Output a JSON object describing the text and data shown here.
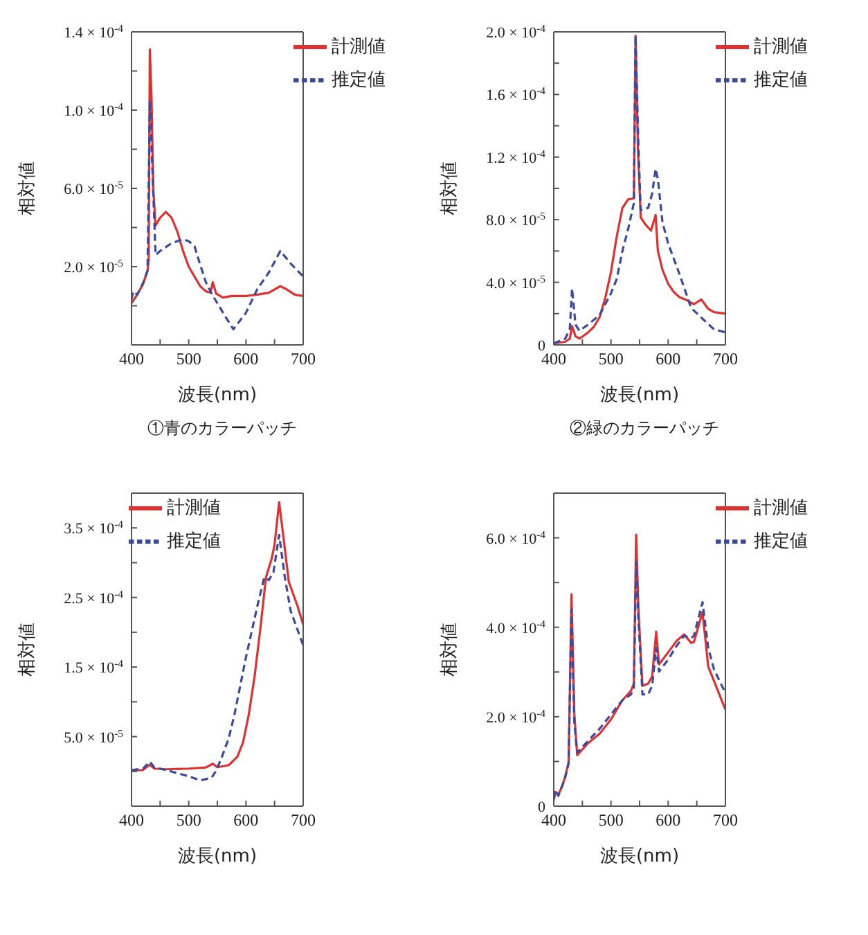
{
  "chart_data": [
    {
      "type": "line",
      "xlabel": "波長(nm)",
      "ylabel": "相対値",
      "annotations": [
        "①青のカラーパッチ"
      ],
      "legend": "top right",
      "marker": "none",
      "xlim": [
        400,
        700
      ],
      "xticks": [
        400,
        {
          "value": 450,
          "label": null
        },
        500,
        {
          "value": 550,
          "label": null
        },
        600,
        {
          "value": 650,
          "label": null
        },
        700
      ],
      "ylim": [
        -2e-05,
        0.00014
      ],
      "yticks": [
        {
          "value": 0,
          "label": null
        },
        {
          "value": 2e-05,
          "label": "2.0 × 10$^{-5}$"
        },
        {
          "value": 4e-05,
          "label": null
        },
        {
          "value": 6e-05,
          "label": "6.0 × 10$^{-5}$"
        },
        {
          "value": 8e-05,
          "label": null
        },
        {
          "value": 0.0001,
          "label": "1.0 × 10$^{-4}$"
        },
        {
          "value": 0.00012,
          "label": null
        },
        {
          "value": 0.00014,
          "label": "1.4 × 10$^{-4}$"
        }
      ],
      "series": [
        {
          "name": "計測値",
          "color": "#e03131",
          "line_style": "solid",
          "x": [
            400,
            410,
            420,
            428,
            430,
            432,
            435,
            438,
            442,
            450,
            460,
            470,
            480,
            490,
            500,
            510,
            520,
            530,
            538,
            542,
            548,
            560,
            575,
            600,
            620,
            640,
            660,
            670,
            685,
            700
          ],
          "values": [
            1.3e-06,
            5.7e-06,
            1.1e-05,
            1.8e-05,
            2.3e-05,
            0.000131,
            0.000106,
            6e-05,
            4.1e-05,
            4.5e-05,
            4.8e-05,
            4.5e-05,
            3.8e-05,
            2.8e-05,
            2e-05,
            1.5e-05,
            1e-05,
            7.4e-06,
            6.7e-06,
            1.2e-05,
            6.2e-06,
            4.2e-06,
            5e-06,
            5e-06,
            5.7e-06,
            6.7e-06,
            1e-05,
            8.6e-06,
            5.7e-06,
            5e-06
          ]
        },
        {
          "name": "推定値",
          "color": "#3a4aa0",
          "line_style": "dashed",
          "x": [
            400,
            403,
            410,
            420,
            428,
            432,
            436,
            442,
            450,
            470,
            490,
            500,
            510,
            520,
            530,
            540,
            560,
            578,
            600,
            620,
            640,
            660,
            680,
            700
          ],
          "values": [
            3.3e-06,
            7.4e-06,
            5.7e-06,
            1.15e-05,
            1.8e-05,
            0.000105,
            7.4e-05,
            2.6e-05,
            2.8e-05,
            3.2e-05,
            3.4e-05,
            3.3e-05,
            3.05e-05,
            2.1e-05,
            1.2e-05,
            6.2e-06,
            -3.6e-06,
            -1.2e-05,
            -3.6e-06,
            8.6e-06,
            1.7e-05,
            2.8e-05,
            2.1e-05,
            1.5e-05
          ]
        }
      ]
    },
    {
      "type": "line",
      "xlabel": "波長(nm)",
      "ylabel": "相対値",
      "annotations": [
        "②緑のカラーパッチ"
      ],
      "legend": "top right",
      "marker": "none",
      "xlim": [
        400,
        700
      ],
      "xticks": [
        400,
        {
          "value": 450,
          "label": null
        },
        500,
        {
          "value": 550,
          "label": null
        },
        600,
        {
          "value": 650,
          "label": null
        },
        700
      ],
      "ylim": [
        0,
        0.0002
      ],
      "yticks": [
        0,
        {
          "value": 2e-05,
          "label": null
        },
        {
          "value": 4e-05,
          "label": "4.0 × 10$^{-5}$"
        },
        {
          "value": 6e-05,
          "label": null
        },
        {
          "value": 8e-05,
          "label": "8.0 × 10$^{-5}$"
        },
        {
          "value": 0.0001,
          "label": null
        },
        {
          "value": 0.00012,
          "label": "1.2 × 10$^{-4}$"
        },
        {
          "value": 0.00014,
          "label": null
        },
        {
          "value": 0.00016,
          "label": "1.6 × 10$^{-4}$"
        },
        {
          "value": 0.00018,
          "label": null
        },
        {
          "value": 0.0002,
          "label": "2.0 × 10$^{-4}$"
        }
      ],
      "series": [
        {
          "name": "計測値",
          "color": "#e03131",
          "line_style": "solid",
          "x": [
            400,
            420,
            428,
            432,
            438,
            445,
            460,
            470,
            480,
            490,
            500,
            510,
            520,
            530,
            540,
            543,
            547,
            552,
            560,
            570,
            578,
            582,
            590,
            600,
            610,
            620,
            630,
            645,
            658,
            670,
            680,
            700
          ],
          "values": [
            1e-06,
            2e-06,
            4e-06,
            1.2e-05,
            5.5e-06,
            4e-06,
            8e-06,
            1.15e-05,
            1.76e-05,
            3e-05,
            4.65e-05,
            6.9e-05,
            8.75e-05,
            9.3e-05,
            9.36e-05,
            0.0001975,
            0.000127,
            8.15e-05,
            7.7e-05,
            7.3e-05,
            8.3e-05,
            6e-05,
            4.8e-05,
            3.9e-05,
            3.37e-05,
            3.04e-05,
            2.9e-05,
            2.6e-05,
            2.9e-05,
            2.3e-05,
            2.1e-05,
            2e-05
          ]
        },
        {
          "name": "推定値",
          "color": "#3a4aa0",
          "line_style": "dashed",
          "x": [
            400,
            420,
            428,
            432,
            438,
            445,
            460,
            480,
            500,
            510,
            520,
            530,
            540,
            543,
            548,
            552,
            565,
            572,
            578,
            582,
            590,
            600,
            620,
            640,
            660,
            680,
            700
          ],
          "values": [
            1e-06,
            4e-06,
            1e-05,
            3.6e-05,
            1.3e-05,
            9e-06,
            1.3e-05,
            1.9e-05,
            3.3e-05,
            4.2e-05,
            6e-05,
            7.4e-05,
            9.06e-05,
            0.0001975,
            0.000127,
            8.6e-05,
            8.75e-05,
            9.67e-05,
            0.0001125,
            0.000106,
            7.84e-05,
            6.47e-05,
            4.5e-05,
            2.37e-05,
            1.67e-05,
            1e-05,
            8e-06
          ]
        }
      ]
    },
    {
      "type": "line",
      "xlabel": "波長(nm)",
      "ylabel": "相対値",
      "legend": "top left",
      "marker": "none",
      "xlim": [
        400,
        700
      ],
      "xticks": [
        400,
        {
          "value": 450,
          "label": null
        },
        500,
        {
          "value": 550,
          "label": null
        },
        600,
        {
          "value": 650,
          "label": null
        },
        700
      ],
      "ylim": [
        -5e-05,
        0.0004
      ],
      "yticks": [
        {
          "value": 0,
          "label": null
        },
        {
          "value": 5e-05,
          "label": "5.0 × 10$^{-5}$"
        },
        {
          "value": 0.0001,
          "label": null
        },
        {
          "value": 0.00015,
          "label": "1.5 × 10$^{-4}$"
        },
        {
          "value": 0.0002,
          "label": null
        },
        {
          "value": 0.00025,
          "label": "2.5 × 10$^{-4}$"
        },
        {
          "value": 0.0003,
          "label": null
        },
        {
          "value": 0.00035,
          "label": "3.5 × 10$^{-4}$"
        }
      ],
      "series": [
        {
          "name": "計測値",
          "color": "#e03131",
          "line_style": "solid",
          "x": [
            400,
            420,
            432,
            440,
            460,
            500,
            530,
            542,
            550,
            570,
            585,
            595,
            605,
            615,
            625,
            635,
            645,
            650,
            658,
            665,
            675,
            690,
            700
          ],
          "values": [
            1e-06,
            2e-06,
            9.7e-06,
            4e-06,
            3e-06,
            4e-06,
            5.6e-06,
            1.1e-05,
            6e-06,
            9e-06,
            2.1e-05,
            4.2e-05,
            8.2e-05,
            0.000136,
            0.000204,
            0.000279,
            0.000306,
            0.000326,
            0.000387,
            0.00034,
            0.000272,
            0.000238,
            0.000211
          ]
        },
        {
          "name": "推定値",
          "color": "#3a4aa0",
          "line_style": "dashed",
          "x": [
            400,
            420,
            432,
            440,
            460,
            480,
            500,
            520,
            540,
            548,
            558,
            570,
            580,
            590,
            600,
            610,
            620,
            632,
            640,
            648,
            658,
            668,
            678,
            690,
            700
          ],
          "values": [
            2e-06,
            4e-06,
            1.4e-05,
            5.6e-06,
            2e-06,
            -2.5e-06,
            -7e-06,
            -1.3e-05,
            -9e-06,
            1e-06,
            2.1e-05,
            4.8e-05,
            8.2e-05,
            0.000123,
            0.000164,
            0.000201,
            0.000238,
            0.000279,
            0.000275,
            0.000286,
            0.00034,
            0.000279,
            0.000231,
            0.000204,
            0.000181
          ]
        }
      ]
    },
    {
      "type": "line",
      "xlabel": "波長(nm)",
      "ylabel": "相対値",
      "legend": "top right",
      "marker": "none",
      "xlim": [
        400,
        700
      ],
      "xticks": [
        400,
        {
          "value": 450,
          "label": null
        },
        500,
        {
          "value": 550,
          "label": null
        },
        600,
        {
          "value": 650,
          "label": null
        },
        700
      ],
      "ylim": [
        0,
        0.0007
      ],
      "yticks": [
        0,
        {
          "value": 0.0001,
          "label": null
        },
        {
          "value": 0.0002,
          "label": "2.0 × 10$^{-4}$"
        },
        {
          "value": 0.0003,
          "label": null
        },
        {
          "value": 0.0004,
          "label": "4.0 × 10$^{-4}$"
        },
        {
          "value": 0.0005,
          "label": null
        },
        {
          "value": 0.0006,
          "label": "6.0 × 10$^{-4}$"
        }
      ],
      "series": [
        {
          "name": "計測値",
          "color": "#e03131",
          "line_style": "solid",
          "x": [
            400,
            403,
            408,
            415,
            420,
            426,
            431,
            436,
            441,
            460,
            480,
            500,
            520,
            535,
            540,
            544,
            548,
            555,
            565,
            572,
            579,
            584,
            600,
            615,
            628,
            640,
            645,
            660,
            670,
            680,
            700
          ],
          "values": [
            1.3e-05,
            3.2e-05,
            2.6e-05,
            4.5e-05,
            6.6e-05,
            9.8e-05,
            0.000474,
            0.000205,
            0.000114,
            0.000141,
            0.000162,
            0.000194,
            0.000237,
            0.000258,
            0.000274,
            0.000607,
            0.00044,
            0.000269,
            0.000274,
            0.00029,
            0.00039,
            0.000317,
            0.000344,
            0.00037,
            0.000384,
            0.000365,
            0.000367,
            0.000434,
            0.000312,
            0.00028,
            0.000216
          ]
        },
        {
          "name": "推定値",
          "color": "#3a4aa0",
          "line_style": "dashed",
          "x": [
            400,
            403,
            408,
            420,
            426,
            431,
            436,
            441,
            460,
            480,
            500,
            520,
            535,
            540,
            544,
            548,
            555,
            565,
            572,
            579,
            584,
            600,
            615,
            628,
            640,
            645,
            660,
            670,
            680,
            700
          ],
          "values": [
            1.8e-05,
            3.6e-05,
            2.3e-05,
            6.4e-05,
            9.6e-05,
            0.00044,
            0.000184,
            0.00012,
            0.000146,
            0.000173,
            0.000205,
            0.000237,
            0.00025,
            0.000264,
            0.000546,
            0.000418,
            0.00025,
            0.00025,
            0.000269,
            0.000354,
            0.000301,
            0.000328,
            0.000359,
            0.000381,
            0.000376,
            0.000381,
            0.000456,
            0.000354,
            0.000306,
            0.000253
          ]
        }
      ]
    }
  ]
}
